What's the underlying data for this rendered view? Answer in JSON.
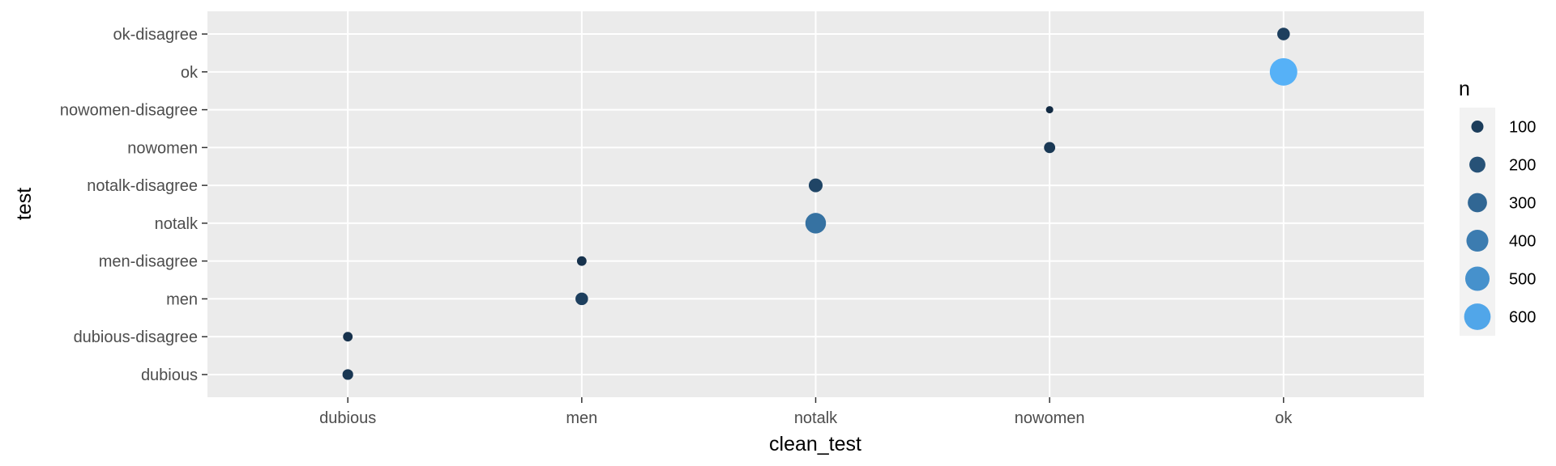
{
  "chart_data": {
    "type": "scatter",
    "xlabel": "clean_test",
    "ylabel": "test",
    "x_categories": [
      "dubious",
      "men",
      "notalk",
      "nowomen",
      "ok"
    ],
    "y_categories": [
      "dubious",
      "dubious-disagree",
      "men",
      "men-disagree",
      "notalk",
      "notalk-disagree",
      "nowomen",
      "nowomen-disagree",
      "ok",
      "ok-disagree"
    ],
    "points": [
      {
        "x": "dubious",
        "y": "dubious",
        "n": 70
      },
      {
        "x": "dubious",
        "y": "dubious-disagree",
        "n": 50
      },
      {
        "x": "men",
        "y": "men",
        "n": 110
      },
      {
        "x": "men",
        "y": "men-disagree",
        "n": 50
      },
      {
        "x": "notalk",
        "y": "notalk",
        "n": 350
      },
      {
        "x": "notalk",
        "y": "notalk-disagree",
        "n": 140
      },
      {
        "x": "nowomen",
        "y": "nowomen",
        "n": 80
      },
      {
        "x": "nowomen",
        "y": "nowomen-disagree",
        "n": 15
      },
      {
        "x": "ok",
        "y": "ok",
        "n": 650
      },
      {
        "x": "ok",
        "y": "ok-disagree",
        "n": 110
      }
    ],
    "legend": {
      "title": "n",
      "placement": "right",
      "breaks": [
        100,
        200,
        300,
        400,
        500,
        600
      ],
      "labels": [
        "100",
        "200",
        "300",
        "400",
        "500",
        "600"
      ]
    },
    "size_range": [
      15,
      650
    ],
    "color_low": "#132b43",
    "color_high": "#56b1f7",
    "grid": true,
    "panel_background": "#ebebeb",
    "grid_color": "#ffffff"
  }
}
